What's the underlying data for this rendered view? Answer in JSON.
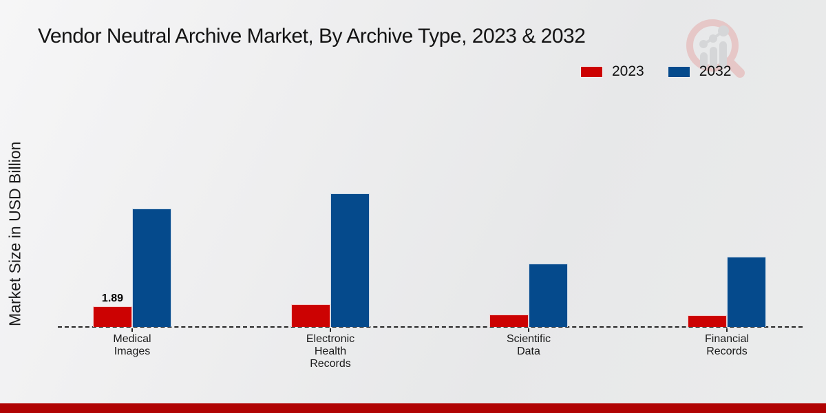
{
  "header": {
    "title": "Vendor Neutral Archive Market, By Archive Type, 2023 & 2032"
  },
  "axes": {
    "y_label": "Market Size in USD Billion"
  },
  "legend": {
    "items": [
      {
        "label": "2023",
        "color": "#cc0202"
      },
      {
        "label": "2032",
        "color": "#054a8c"
      }
    ]
  },
  "colors": {
    "series_2023": "#cc0202",
    "series_2032": "#054a8c",
    "brand_strip": "#b00303",
    "axis_line": "#262626"
  },
  "icons": {
    "watermark": "magnifier-bar-chart-logo"
  },
  "chart_data": {
    "type": "bar",
    "title": "Vendor Neutral Archive Market, By Archive Type, 2023 & 2032",
    "xlabel": "",
    "ylabel": "Market Size in USD Billion",
    "categories": [
      "Medical\nImages",
      "Electronic\nHealth\nRecords",
      "Scientific\nData",
      "Financial\nRecords"
    ],
    "series": [
      {
        "name": "2023",
        "color": "#cc0202",
        "values": [
          1.89,
          2.1,
          1.15,
          1.1
        ],
        "value_labels": [
          "1.89",
          null,
          null,
          null
        ]
      },
      {
        "name": "2032",
        "color": "#054a8c",
        "values": [
          10.8,
          12.2,
          5.8,
          6.4
        ],
        "value_labels": [
          null,
          null,
          null,
          null
        ]
      }
    ],
    "ylim": [
      0,
      13
    ],
    "grid": false,
    "y_ticks_visible": false,
    "baseline_style": "dashed",
    "legend_position": "top-right"
  }
}
